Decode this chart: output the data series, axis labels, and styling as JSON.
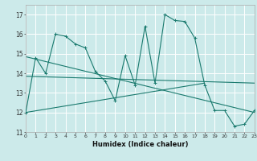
{
  "xlabel": "Humidex (Indice chaleur)",
  "bg_color": "#cceaea",
  "grid_color": "#ffffff",
  "line_color": "#1a7a6e",
  "xlim": [
    0,
    23
  ],
  "ylim": [
    11,
    17.5
  ],
  "yticks": [
    11,
    12,
    13,
    14,
    15,
    16,
    17
  ],
  "xticks": [
    0,
    1,
    2,
    3,
    4,
    5,
    6,
    7,
    8,
    9,
    10,
    11,
    12,
    13,
    14,
    15,
    16,
    17,
    18,
    19,
    20,
    21,
    22,
    23
  ],
  "series": [
    [
      0,
      12.0
    ],
    [
      1,
      14.8
    ],
    [
      2,
      14.0
    ],
    [
      3,
      16.0
    ],
    [
      4,
      15.9
    ],
    [
      5,
      15.5
    ],
    [
      6,
      15.3
    ],
    [
      7,
      14.1
    ],
    [
      8,
      13.6
    ],
    [
      9,
      12.6
    ],
    [
      10,
      14.9
    ],
    [
      11,
      13.4
    ],
    [
      12,
      16.4
    ],
    [
      13,
      13.5
    ],
    [
      14,
      17.0
    ],
    [
      15,
      16.7
    ],
    [
      16,
      16.65
    ],
    [
      17,
      15.8
    ],
    [
      18,
      13.4
    ],
    [
      19,
      12.1
    ],
    [
      20,
      12.1
    ],
    [
      21,
      11.3
    ],
    [
      22,
      11.4
    ],
    [
      23,
      12.1
    ]
  ],
  "linear1": [
    [
      0,
      14.85
    ],
    [
      23,
      12.0
    ]
  ],
  "linear2": [
    [
      0,
      13.85
    ],
    [
      23,
      13.5
    ]
  ],
  "linear3": [
    [
      0,
      12.0
    ],
    [
      18,
      13.5
    ]
  ]
}
